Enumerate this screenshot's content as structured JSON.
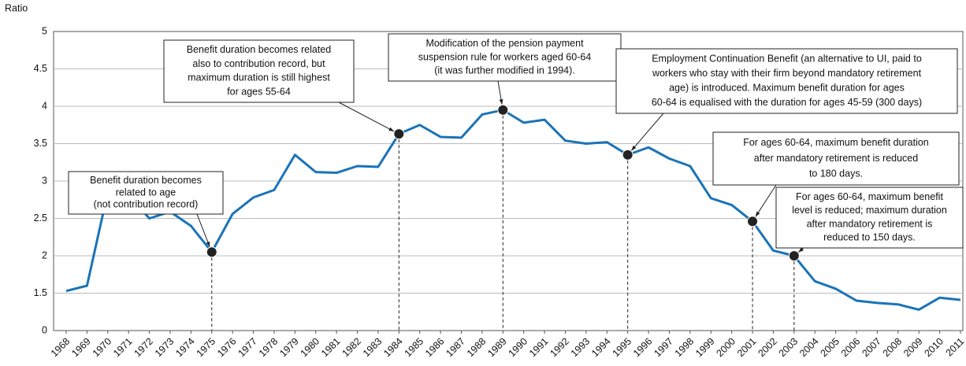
{
  "chart_data": {
    "type": "line",
    "y_label": "Ratio",
    "categories": [
      "1968",
      "1969",
      "1970",
      "1971",
      "1972",
      "1973",
      "1974",
      "1975",
      "1976",
      "1977",
      "1978",
      "1979",
      "1980",
      "1981",
      "1982",
      "1983",
      "1984",
      "1985",
      "1986",
      "1987",
      "1988",
      "1989",
      "1990",
      "1991",
      "1992",
      "1993",
      "1994",
      "1995",
      "1996",
      "1997",
      "1998",
      "1999",
      "2000",
      "2001",
      "2002",
      "2003",
      "2004",
      "2005",
      "2006",
      "2007",
      "2008",
      "2009",
      "2010",
      "2011"
    ],
    "series": [
      {
        "color": "#1a74b8",
        "values": [
          1.53,
          1.6,
          2.85,
          2.81,
          2.5,
          2.59,
          2.4,
          2.05,
          2.56,
          2.78,
          2.88,
          3.35,
          3.12,
          3.11,
          3.2,
          3.19,
          3.63,
          3.75,
          3.59,
          3.58,
          3.89,
          3.95,
          3.78,
          3.82,
          3.54,
          3.5,
          3.52,
          3.35,
          3.45,
          3.3,
          3.2,
          2.77,
          2.68,
          2.46,
          2.07,
          2.0,
          1.66,
          1.56,
          1.4,
          1.37,
          1.35,
          1.28,
          1.44,
          1.41
        ]
      }
    ],
    "ylim": [
      1,
      5
    ],
    "yticks": [
      0,
      1.5,
      2.0,
      2.5,
      3.0,
      3.5,
      4.0,
      4.5,
      5.0
    ],
    "y_axis_break": true,
    "grid": true,
    "annotations": [
      {
        "category": "1975",
        "text": [
          "Benefit duration becomes",
          "related to age",
          "(not contribution record)"
        ]
      },
      {
        "category": "1984",
        "text": [
          "Benefit duration becomes related",
          "also to contribution record, but",
          "maximum duration is still highest",
          "for ages 55-64"
        ]
      },
      {
        "category": "1989",
        "text": [
          "Modification of the pension payment",
          "suspension rule for workers aged 60-64",
          "(it was further modified in 1994)."
        ]
      },
      {
        "category": "1995",
        "text": [
          "Employment Continuation Benefit (an alternative to UI, paid to",
          "workers who stay with their firm beyond mandatory retirement",
          "age) is introduced. Maximum benefit duration for ages",
          "60-64 is equalised with the duration for ages 45-59 (300 days)"
        ]
      },
      {
        "category": "2001",
        "text": [
          "For ages 60-64, maximum benefit duration",
          "after mandatory retirement is reduced",
          "to 180 days."
        ]
      },
      {
        "category": "2003",
        "text": [
          "For ages 60-64, maximum benefit",
          "level is reduced; maximum duration",
          "after mandatory retirement is",
          "reduced to 150 days."
        ]
      }
    ]
  }
}
